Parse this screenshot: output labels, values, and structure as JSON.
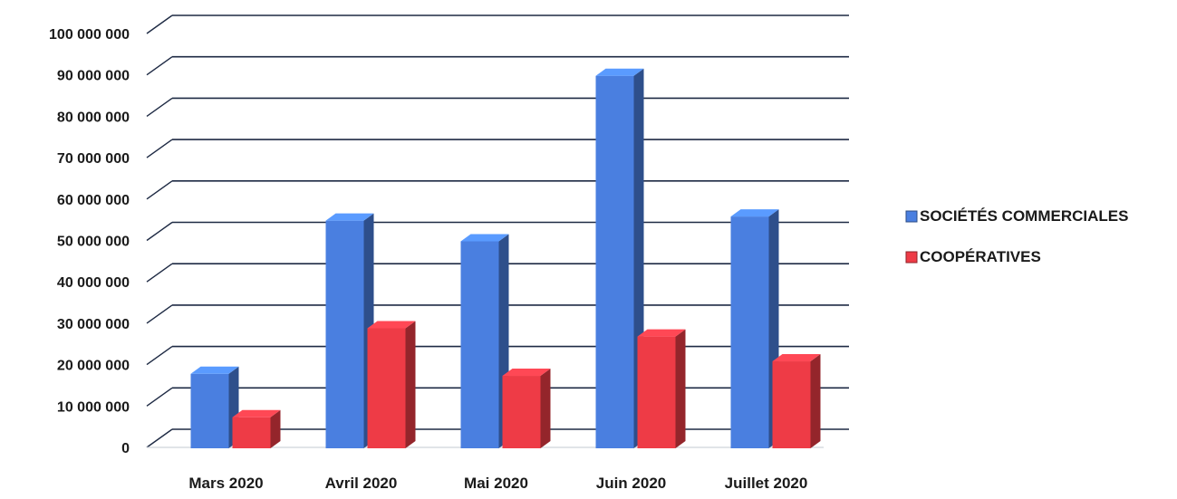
{
  "chart_data": {
    "type": "bar",
    "title": "",
    "xlabel": "",
    "ylabel": "",
    "ylim": [
      0,
      100000000
    ],
    "y_ticks": [
      0,
      10000000,
      20000000,
      30000000,
      40000000,
      50000000,
      60000000,
      70000000,
      80000000,
      90000000,
      100000000
    ],
    "y_tick_labels": [
      "0",
      "10 000 000",
      "20 000 000",
      "30 000 000",
      "40 000 000",
      "50 000 000",
      "60 000 000",
      "70 000 000",
      "80 000 000",
      "90 000 000",
      "100 000 000"
    ],
    "categories": [
      "Mars 2020",
      "Avril 2020",
      "Mai 2020",
      "Juin 2020",
      "Juillet 2020"
    ],
    "series": [
      {
        "name": "SOCIÉTÉS COMMERCIALES",
        "color": "#4a7fe0",
        "values": [
          18000000,
          55000000,
          50000000,
          90000000,
          56000000
        ]
      },
      {
        "name": "COOPÉRATIVES",
        "color": "#ee3b46",
        "values": [
          7500000,
          29000000,
          17500000,
          27000000,
          21000000
        ]
      }
    ],
    "grid": true,
    "legend_position": "right",
    "style": "3d"
  }
}
